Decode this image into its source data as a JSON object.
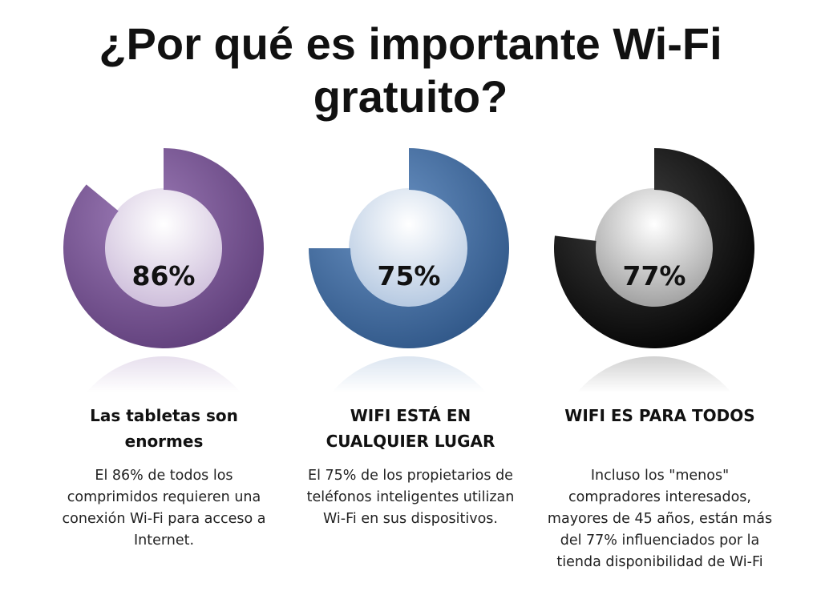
{
  "title": {
    "line1": "¿Por qué es importante Wi-Fi",
    "line2": "gratuito?"
  },
  "chart_data": {
    "type": "pie",
    "charts": [
      {
        "value": 86,
        "label": "86%",
        "color": "#7b4f9e"
      },
      {
        "value": 75,
        "label": "75%",
        "color": "#3a6fb0"
      },
      {
        "value": 77,
        "label": "77%",
        "color": "#000000"
      }
    ]
  },
  "columns": [
    {
      "heading": "Las tabletas son enormes",
      "body": "El 86% de todos los comprimidos requieren una conexión Wi-Fi para acceso a Internet."
    },
    {
      "heading": "WIFI ESTÁ EN CUALQUIER LUGAR",
      "body": "El 75% de los propietarios de teléfonos inteligentes utilizan Wi-Fi en sus dispositivos."
    },
    {
      "heading": "WIFI ES PARA TODOS",
      "body": "Incluso los \"menos\" compradores interesados, mayores de 45 años, están más del 77% influenciados por la tienda disponibilidad de Wi-Fi"
    }
  ]
}
